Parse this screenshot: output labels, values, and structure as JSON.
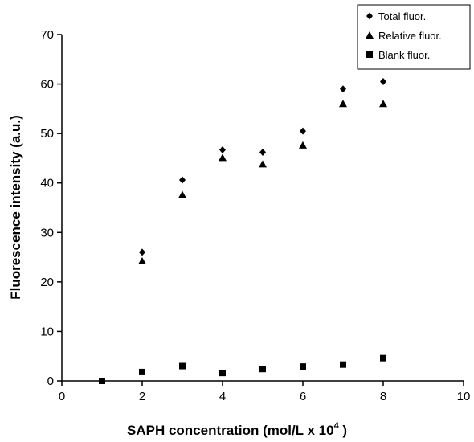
{
  "chart_data": {
    "type": "scatter",
    "xlabel": "SAPH concentration (mol/L x 10",
    "xlabel_superscript": "4",
    "xlabel_suffix": " )",
    "ylabel": "Fluorescence intensity (a.u.)",
    "xlim": [
      0,
      10
    ],
    "ylim": [
      0,
      70
    ],
    "x_ticks": [
      "0",
      "2",
      "4",
      "6",
      "8",
      "10"
    ],
    "y_ticks": [
      "0",
      "10",
      "20",
      "30",
      "40",
      "50",
      "60",
      "70"
    ],
    "grid": false,
    "legend_position": "top-right",
    "series": [
      {
        "name": "Total fluor.",
        "marker": "diamond",
        "color": "#000000",
        "points": [
          [
            2,
            26.0
          ],
          [
            3,
            40.6
          ],
          [
            4,
            46.7
          ],
          [
            5,
            46.2
          ],
          [
            6,
            50.5
          ],
          [
            7,
            59.0
          ],
          [
            8,
            60.5
          ]
        ]
      },
      {
        "name": "Relative fluor.",
        "marker": "triangle",
        "color": "#000000",
        "points": [
          [
            2,
            24.2
          ],
          [
            3,
            37.6
          ],
          [
            4,
            45.1
          ],
          [
            5,
            43.8
          ],
          [
            6,
            47.6
          ],
          [
            7,
            56.0
          ],
          [
            8,
            56.0
          ]
        ]
      },
      {
        "name": "Blank fluor.",
        "marker": "square",
        "color": "#000000",
        "points": [
          [
            1,
            0.0
          ],
          [
            2,
            1.8
          ],
          [
            3,
            3.0
          ],
          [
            4,
            1.6
          ],
          [
            5,
            2.4
          ],
          [
            6,
            2.9
          ],
          [
            7,
            3.3
          ],
          [
            8,
            4.6
          ]
        ]
      }
    ]
  }
}
